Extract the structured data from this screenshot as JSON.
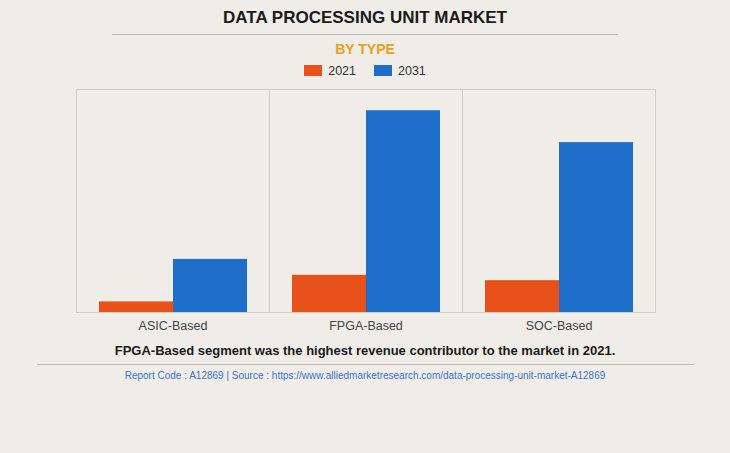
{
  "chart_data": {
    "type": "bar",
    "title": "DATA PROCESSING UNIT MARKET",
    "subtitle": "BY TYPE",
    "categories": [
      "ASIC-Based",
      "FPGA-Based",
      "SOC-Based"
    ],
    "series": [
      {
        "name": "2021",
        "color": "#e8521a",
        "values": [
          1,
          3.5,
          3.0
        ]
      },
      {
        "name": "2031",
        "color": "#1f6fca",
        "values": [
          5,
          19,
          16
        ]
      }
    ],
    "ylim": [
      0,
      21
    ],
    "yticks": [],
    "grid": false,
    "legend": "top",
    "tick_labels": "x",
    "annotation": "FPGA-Based segment was the highest revenue contributor to the market in 2021.",
    "footer": "Report Code : A12869  |  Source : https://www.alliedmarketresearch.com/data-processing-unit-market-A12869"
  }
}
